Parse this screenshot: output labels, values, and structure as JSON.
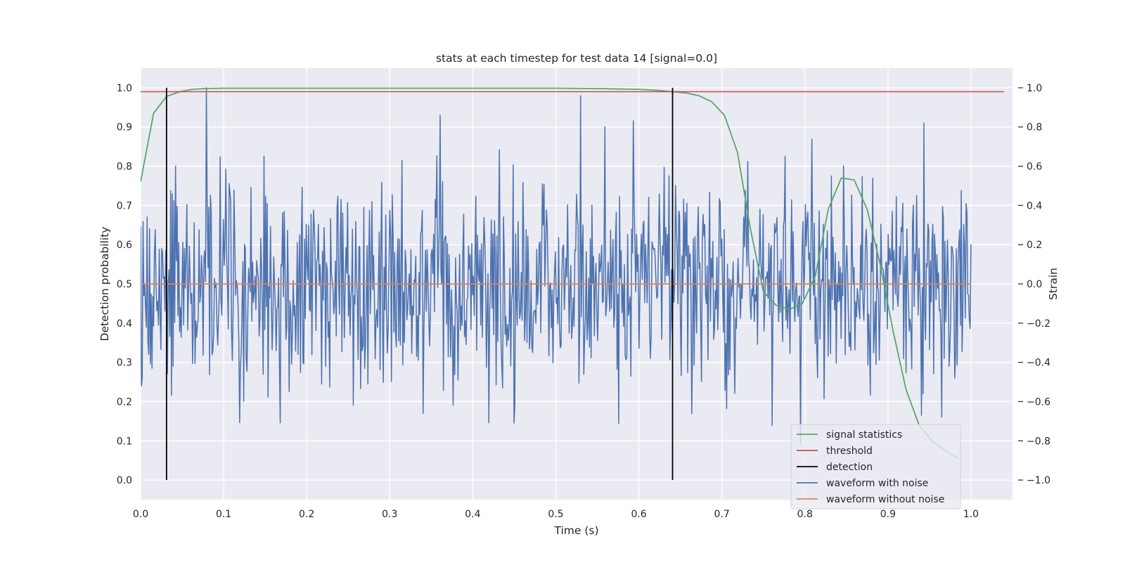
{
  "chart_data": {
    "type": "line",
    "title": "stats at each timestep for test data 14 [signal=0.0]",
    "xlabel": "Time (s)",
    "ylabel_left": "Detection probability",
    "ylabel_right": "Strain",
    "xlim": [
      0.0,
      1.05
    ],
    "ylim_left": [
      -0.05,
      1.05
    ],
    "ylim_right": [
      -1.1,
      1.1
    ],
    "xticks": [
      "0.0",
      "0.1",
      "0.2",
      "0.3",
      "0.4",
      "0.5",
      "0.6",
      "0.7",
      "0.8",
      "0.9",
      "1.0"
    ],
    "yticks_left": [
      "0.0",
      "0.1",
      "0.2",
      "0.3",
      "0.4",
      "0.5",
      "0.6",
      "0.7",
      "0.8",
      "0.9",
      "1.0"
    ],
    "yticks_right": [
      "−1.0",
      "−0.8",
      "−0.6",
      "−0.4",
      "−0.2",
      "0.0",
      "0.2",
      "0.4",
      "0.6",
      "0.8",
      "1.0"
    ],
    "grid": true,
    "legend_position": "lower-right",
    "colors": {
      "signal_statistics": "#55a868",
      "threshold": "#c44e52",
      "detection": "#000000",
      "waveform_with_noise": "#4c72b0",
      "waveform_without_noise": "#dd8452",
      "plot_background": "#eaeaf2",
      "grid": "#ffffff"
    },
    "legend": [
      {
        "key": "signal_statistics",
        "label": "signal statistics"
      },
      {
        "key": "threshold",
        "label": "threshold"
      },
      {
        "key": "detection",
        "label": "detection"
      },
      {
        "key": "waveform_with_noise",
        "label": "waveform with noise"
      },
      {
        "key": "waveform_without_noise",
        "label": "waveform without noise"
      }
    ],
    "signal_statistics": {
      "axis": "left",
      "x": [
        0.0,
        0.0156,
        0.0312,
        0.0469,
        0.0625,
        0.0781,
        0.1,
        0.2,
        0.3,
        0.4,
        0.5,
        0.55,
        0.6,
        0.625,
        0.6406,
        0.6562,
        0.6719,
        0.6875,
        0.7031,
        0.7188,
        0.7344,
        0.75,
        0.7656,
        0.7812,
        0.7969,
        0.8125,
        0.8281,
        0.8438,
        0.8594,
        0.875,
        0.8906,
        0.9062,
        0.9219,
        0.9375,
        0.9531,
        0.9688,
        0.9844
      ],
      "y": [
        0.76,
        0.935,
        0.978,
        0.99,
        0.996,
        0.998,
        0.999,
        0.999,
        0.999,
        0.999,
        0.999,
        0.998,
        0.996,
        0.993,
        0.99,
        0.987,
        0.98,
        0.965,
        0.93,
        0.835,
        0.64,
        0.48,
        0.445,
        0.435,
        0.45,
        0.52,
        0.69,
        0.77,
        0.765,
        0.69,
        0.55,
        0.38,
        0.23,
        0.14,
        0.1,
        0.075,
        0.055
      ]
    },
    "threshold": {
      "axis": "left",
      "x": [
        0.0,
        1.04
      ],
      "y": [
        0.99,
        0.99
      ]
    },
    "detections": {
      "axis": "left",
      "x": [
        0.0312,
        0.6406
      ],
      "y_range": [
        0.0,
        1.0
      ]
    },
    "waveform_without_noise": {
      "axis": "right",
      "x": [
        0.0,
        1.0
      ],
      "y": [
        0.0,
        0.0
      ]
    },
    "waveform_with_noise": {
      "axis": "right",
      "x_start": 0.0,
      "x_end": 1.0,
      "n_points": 1024,
      "amplitude_scale": 0.27,
      "noise_seed": 14,
      "highlighted_peaks": [
        {
          "x": 0.079,
          "y": 1.0
        },
        {
          "x": 0.53,
          "y": 0.96
        },
        {
          "x": 0.315,
          "y": 0.63
        },
        {
          "x": 0.943,
          "y": 0.82
        },
        {
          "x": 0.45,
          "y": -0.71
        },
        {
          "x": 0.795,
          "y": -0.82
        },
        {
          "x": 0.34,
          "y": -0.66
        },
        {
          "x": 0.965,
          "y": -0.68
        }
      ]
    }
  }
}
